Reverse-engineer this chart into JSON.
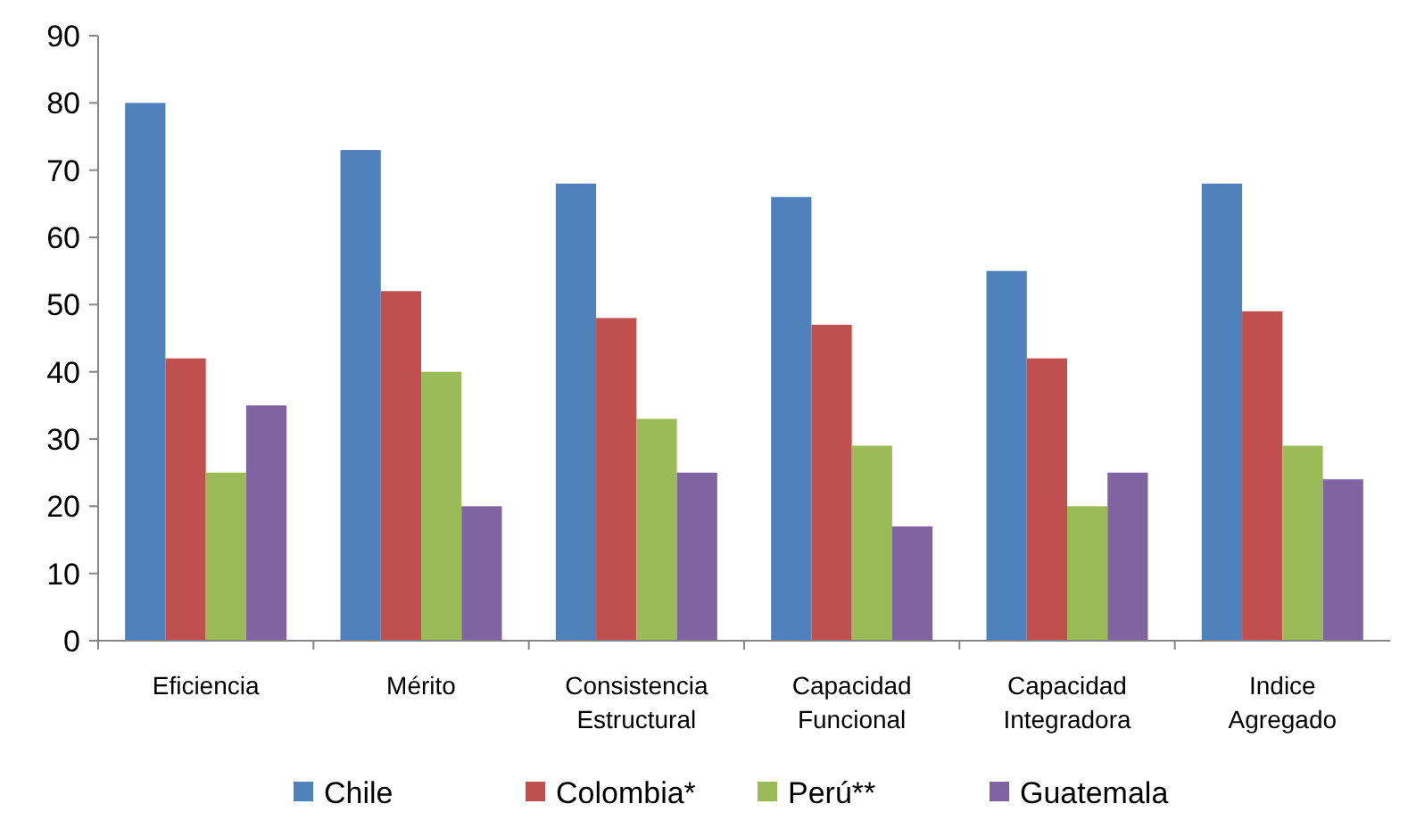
{
  "chart_data": {
    "type": "bar",
    "categories": [
      "Eficiencia",
      "Mérito",
      "Consistencia Estructural",
      "Capacidad Funcional",
      "Capacidad Integradora",
      "Indice Agregado"
    ],
    "series": [
      {
        "name": "Chile",
        "color": "#4f81bd",
        "values": [
          80,
          73,
          68,
          66,
          55,
          68
        ]
      },
      {
        "name": "Colombia*",
        "color": "#c0504d",
        "values": [
          42,
          52,
          48,
          47,
          42,
          49
        ]
      },
      {
        "name": "Perú**",
        "color": "#9bbb59",
        "values": [
          25,
          40,
          33,
          29,
          20,
          29
        ]
      },
      {
        "name": "Guatemala",
        "color": "#8064a2",
        "values": [
          35,
          20,
          25,
          17,
          25,
          24
        ]
      }
    ],
    "ylim": [
      0,
      90
    ],
    "yticks": [
      0,
      10,
      20,
      30,
      40,
      50,
      60,
      70,
      80,
      90
    ],
    "legend": "bottom"
  }
}
